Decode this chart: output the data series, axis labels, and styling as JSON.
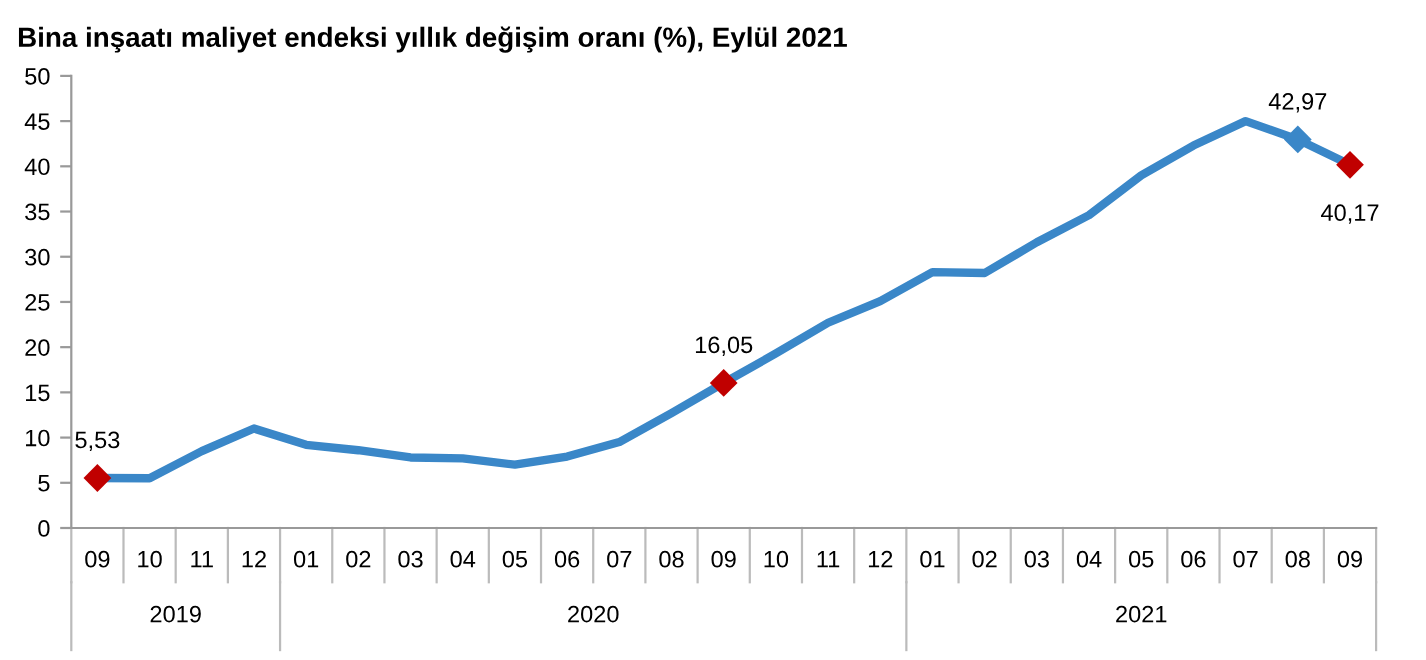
{
  "chart_data": {
    "type": "line",
    "title": "Bina inşaatı maliyet endeksi yıllık değişim oranı (%), Eylül 2021",
    "categories": [
      "09",
      "10",
      "11",
      "12",
      "01",
      "02",
      "03",
      "04",
      "05",
      "06",
      "07",
      "08",
      "09",
      "10",
      "11",
      "12",
      "01",
      "02",
      "03",
      "04",
      "05",
      "06",
      "07",
      "08",
      "09"
    ],
    "series": [
      {
        "color": "#3a87c8",
        "values": [
          5.53,
          5.5,
          8.5,
          11.0,
          9.2,
          8.6,
          7.8,
          7.7,
          7.0,
          7.9,
          9.5,
          12.7,
          16.05,
          19.3,
          22.7,
          25.1,
          28.3,
          28.2,
          31.6,
          34.6,
          39.0,
          42.3,
          45.0,
          42.97,
          40.17
        ]
      },
      {
        "type": "scatter",
        "marker": "diamond",
        "values": [
          5.53,
          null,
          null,
          null,
          null,
          null,
          null,
          null,
          null,
          null,
          null,
          null,
          16.05,
          null,
          null,
          null,
          null,
          null,
          null,
          null,
          null,
          null,
          null,
          42.97,
          40.17
        ],
        "value_labels": [
          "5,53",
          null,
          null,
          null,
          null,
          null,
          null,
          null,
          null,
          null,
          null,
          null,
          "16,05",
          null,
          null,
          null,
          null,
          null,
          null,
          null,
          null,
          null,
          null,
          "42,97",
          "40,17"
        ],
        "colors": [
          "#c00000",
          null,
          null,
          null,
          null,
          null,
          null,
          null,
          null,
          null,
          null,
          null,
          "#c00000",
          null,
          null,
          null,
          null,
          null,
          null,
          null,
          null,
          null,
          null,
          "#3a87c8",
          "#c00000"
        ]
      }
    ],
    "annotations": [
      "2019",
      "2020",
      "2021"
    ],
    "ylim": [
      0,
      50
    ],
    "yticks": [
      0,
      5,
      10,
      15,
      20,
      25,
      30,
      35,
      40,
      45,
      50
    ],
    "line_style": "solid",
    "grid": false,
    "legend": false
  }
}
